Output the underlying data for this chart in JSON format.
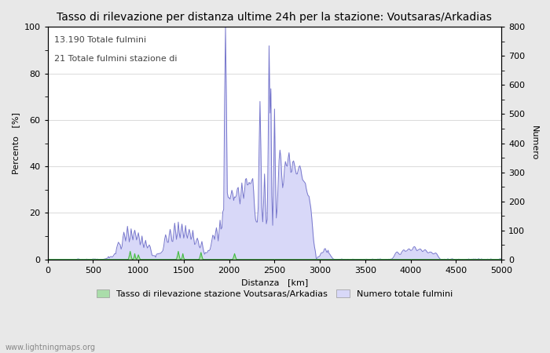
{
  "title": "Tasso di rilevazione per distanza ultime 24h per la stazione: Voutsaras/Arkadias",
  "xlabel": "Distanza   [km]",
  "ylabel_left": "Percento   [%]",
  "ylabel_right": "Numero",
  "annotation_line1": "13.190 Totale fulmini",
  "annotation_line2": "21 Totale fulmini stazione di",
  "xlim": [
    0,
    5000
  ],
  "ylim_left": [
    0,
    100
  ],
  "ylim_right": [
    0,
    800
  ],
  "xticks": [
    0,
    500,
    1000,
    1500,
    2000,
    2500,
    3000,
    3500,
    4000,
    4500,
    5000
  ],
  "yticks_left": [
    0,
    20,
    40,
    60,
    80,
    100
  ],
  "yticks_right": [
    0,
    100,
    200,
    300,
    400,
    500,
    600,
    700,
    800
  ],
  "yticks_right_minor_labels": [
    "-",
    "-",
    "-",
    "-",
    "-",
    "-",
    "-"
  ],
  "legend_label_green": "Tasso di rilevazione stazione Voutsaras/Arkadias",
  "legend_label_blue": "Numero totale fulmini",
  "bg_color": "#e8e8e8",
  "plot_bg_color": "#ffffff",
  "line_color_blue": "#7777cc",
  "fill_color_blue": "#d8d8f8",
  "line_color_green": "#44bb44",
  "fill_color_green": "#aaddaa",
  "watermark": "www.lightningmaps.org",
  "grid_color": "#cccccc",
  "title_fontsize": 10,
  "axis_fontsize": 8,
  "tick_fontsize": 8,
  "annotation_fontsize": 8
}
